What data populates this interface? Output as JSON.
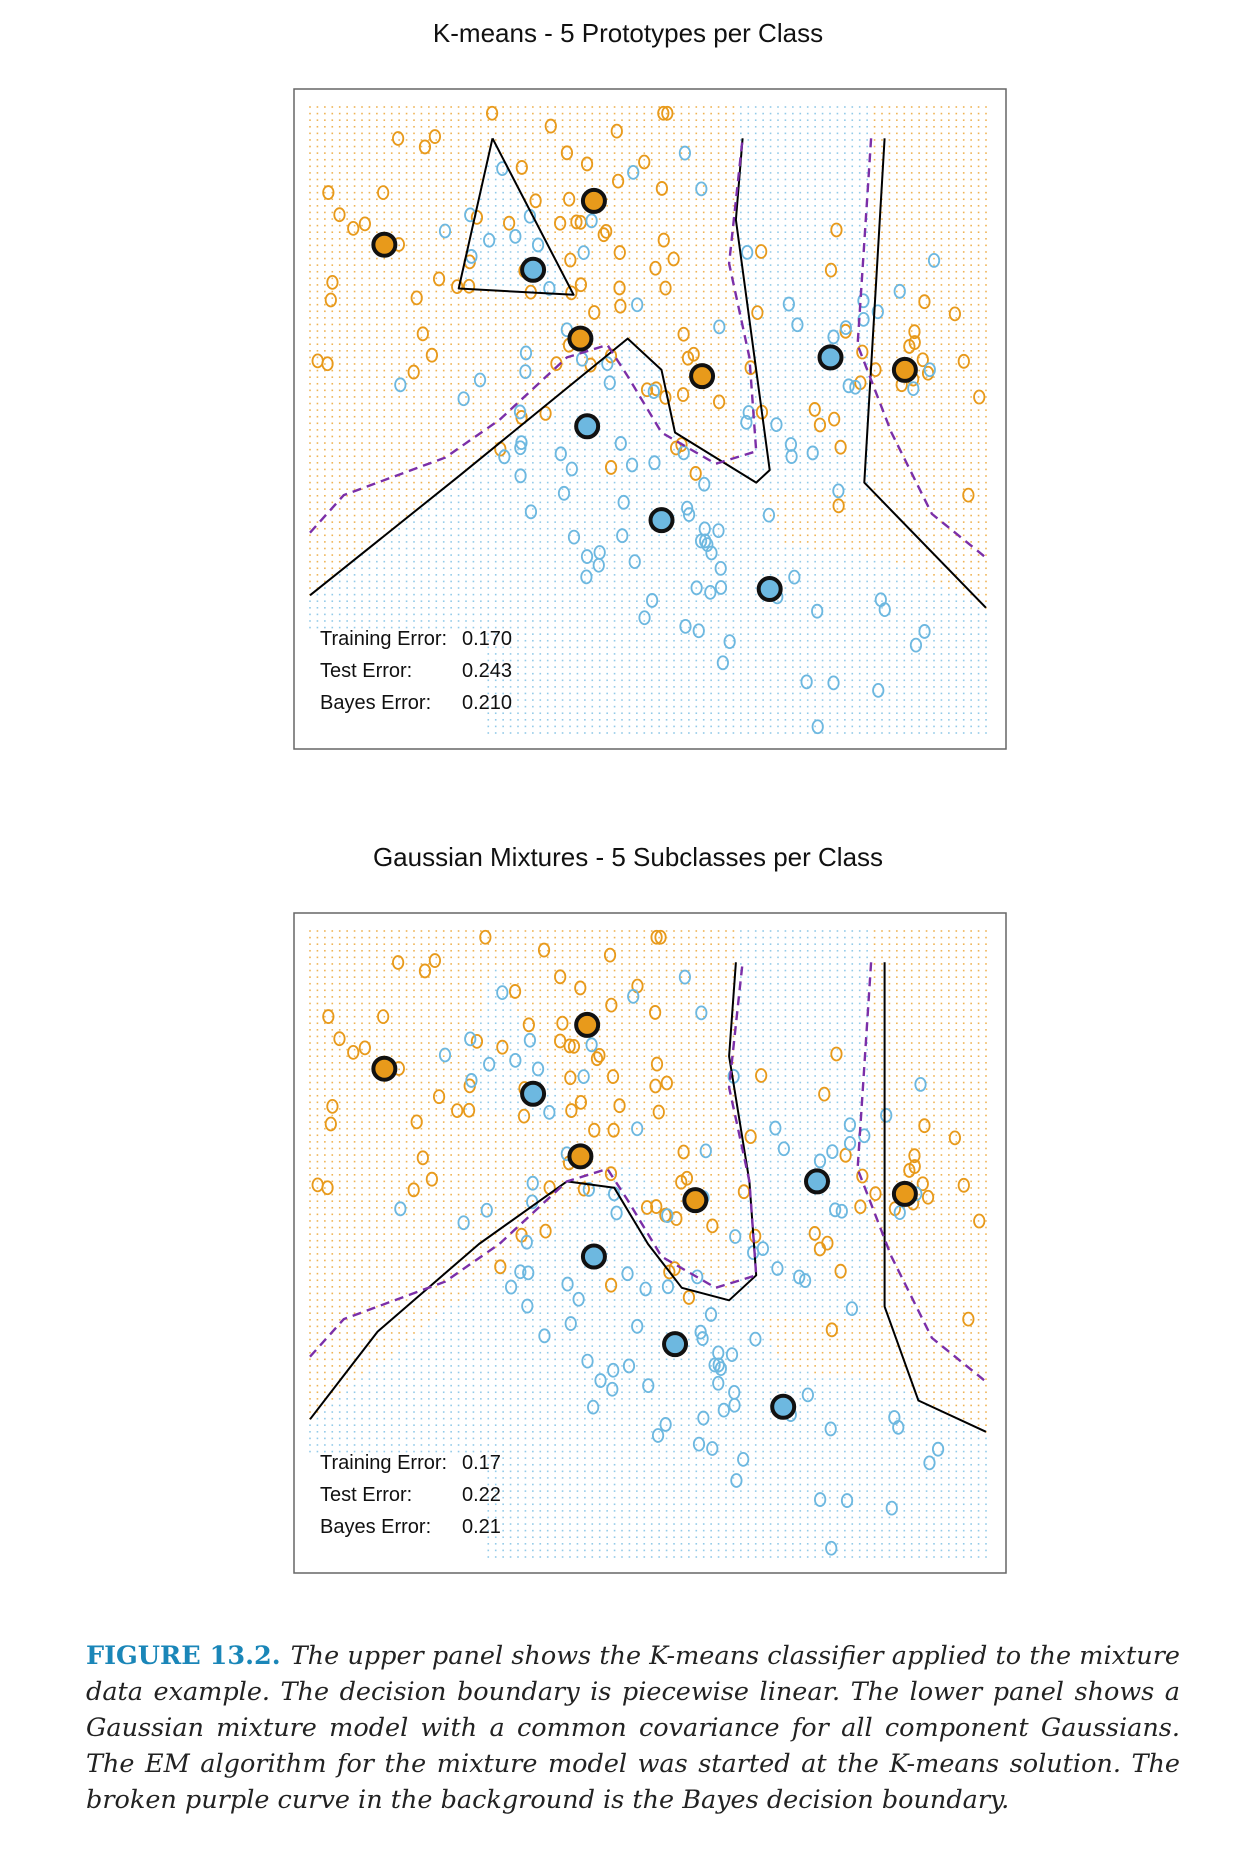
{
  "colors": {
    "orange": "#e89a1b",
    "blue": "#6db8e0",
    "boundary": "#000000",
    "bayes": "#7b2fa8"
  },
  "figure": {
    "label": "FIGURE 13.2.",
    "caption": "The upper panel shows the K-means classifier applied to the mixture data example. The decision boundary is piecewise linear. The lower panel shows a Gaussian mixture model with a common covariance for all component Gaussians. The EM algorithm for the mixture model was started at the K-means solution. The broken purple curve in the background is the Bayes decision boundary."
  },
  "chart_data": [
    {
      "type": "scatter",
      "title": "K-means - 5 Prototypes per Class",
      "xlabel": "",
      "ylabel": "",
      "xlim": [
        0,
        100
      ],
      "ylim": [
        0,
        100
      ],
      "grid": false,
      "error_labels": {
        "training": "Training Error:",
        "test": "Test Error:",
        "bayes": "Bayes Error:"
      },
      "errors": {
        "training": "0.170",
        "test": "0.243",
        "bayes": "0.210"
      },
      "prototypes": {
        "orange": [
          [
            11,
            78
          ],
          [
            40,
            63
          ],
          [
            42,
            85
          ],
          [
            58,
            57
          ],
          [
            88,
            58
          ]
        ],
        "blue": [
          [
            33,
            74
          ],
          [
            41,
            49
          ],
          [
            52,
            34
          ],
          [
            68,
            23
          ],
          [
            77,
            60
          ]
        ]
      },
      "boundary": [
        [
          [
            27,
            95
          ],
          [
            39,
            70
          ],
          [
            22,
            71
          ],
          [
            27,
            95
          ]
        ],
        [
          [
            0,
            22
          ],
          [
            22,
            41
          ],
          [
            47,
            63
          ],
          [
            52,
            58
          ],
          [
            54,
            48
          ],
          [
            66,
            40
          ],
          [
            68,
            42
          ],
          [
            63,
            82
          ],
          [
            64,
            95
          ]
        ],
        [
          [
            85,
            95
          ],
          [
            82,
            40
          ],
          [
            100,
            20
          ]
        ]
      ],
      "bayes": [
        [
          0,
          32
        ],
        [
          5,
          38
        ],
        [
          20,
          44
        ],
        [
          28,
          50
        ],
        [
          38,
          60
        ],
        [
          44,
          62
        ],
        [
          47,
          57
        ],
        [
          52,
          48
        ],
        [
          60,
          43
        ],
        [
          66,
          45
        ],
        [
          65,
          60
        ],
        [
          62,
          75
        ],
        [
          64,
          95
        ]
      ]
    },
    {
      "type": "scatter",
      "title": "Gaussian Mixtures - 5 Subclasses per Class",
      "xlabel": "",
      "ylabel": "",
      "xlim": [
        0,
        100
      ],
      "ylim": [
        0,
        100
      ],
      "grid": false,
      "error_labels": {
        "training": "Training Error:",
        "test": "Test Error:",
        "bayes": "Bayes Error:"
      },
      "errors": {
        "training": "0.17",
        "test": "0.22",
        "bayes": "0.21"
      },
      "prototypes": {
        "orange": [
          [
            11,
            78
          ],
          [
            40,
            64
          ],
          [
            41,
            85
          ],
          [
            57,
            57
          ],
          [
            88,
            58
          ]
        ],
        "blue": [
          [
            33,
            74
          ],
          [
            42,
            48
          ],
          [
            54,
            34
          ],
          [
            70,
            24
          ],
          [
            75,
            60
          ]
        ]
      },
      "boundary": [
        [
          [
            0,
            22
          ],
          [
            10,
            36
          ],
          [
            25,
            50
          ],
          [
            38,
            60
          ],
          [
            45,
            59
          ],
          [
            50,
            50
          ],
          [
            55,
            43
          ],
          [
            62,
            41
          ],
          [
            66,
            45
          ],
          [
            65,
            60
          ],
          [
            62,
            80
          ],
          [
            63,
            95
          ]
        ],
        [
          [
            85,
            95
          ],
          [
            85,
            40
          ],
          [
            90,
            25
          ],
          [
            100,
            20
          ]
        ]
      ],
      "bayes": [
        [
          0,
          32
        ],
        [
          5,
          38
        ],
        [
          20,
          44
        ],
        [
          28,
          50
        ],
        [
          38,
          60
        ],
        [
          44,
          62
        ],
        [
          47,
          57
        ],
        [
          52,
          48
        ],
        [
          60,
          43
        ],
        [
          66,
          45
        ],
        [
          65,
          60
        ],
        [
          62,
          75
        ],
        [
          64,
          95
        ]
      ]
    }
  ]
}
